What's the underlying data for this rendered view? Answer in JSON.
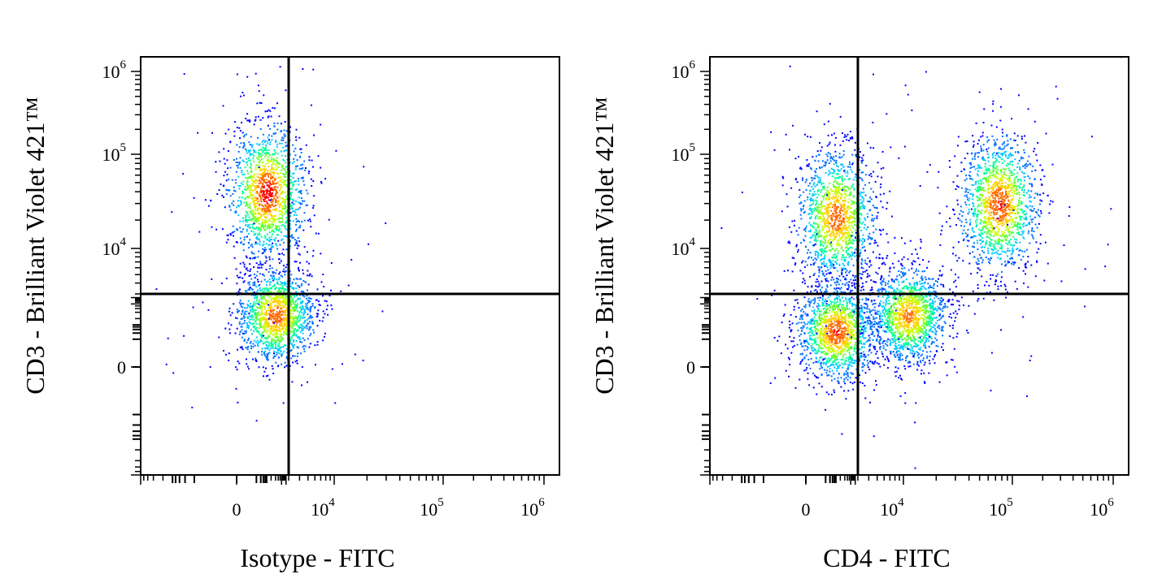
{
  "colors": {
    "density": [
      "#0000ff",
      "#0070ff",
      "#00c8ff",
      "#00ff9a",
      "#60ff30",
      "#c8ff00",
      "#ffd000",
      "#ff6a00",
      "#ff0000"
    ],
    "frame": "#000000",
    "gate": "#000000"
  },
  "chart_data": [
    {
      "type": "scatter",
      "subtype": "flow-cytometry-density-plot",
      "xlabel": "Isotype - FITC",
      "ylabel": "CD3 - Brilliant Violet 421™",
      "x_scale": "biexponential",
      "y_scale": "biexponential",
      "xlim": [
        -1000,
        1000000
      ],
      "ylim": [
        -1000,
        1000000
      ],
      "x_ticks": [
        {
          "value": 0,
          "base": "0",
          "exp": ""
        },
        {
          "value": 10000,
          "base": "10",
          "exp": "4"
        },
        {
          "value": 100000,
          "base": "10",
          "exp": "5"
        },
        {
          "value": 1000000,
          "base": "10",
          "exp": "6"
        }
      ],
      "y_ticks": [
        {
          "value": 0,
          "base": "0",
          "exp": ""
        },
        {
          "value": 10000,
          "base": "10",
          "exp": "4"
        },
        {
          "value": 100000,
          "base": "10",
          "exp": "5"
        },
        {
          "value": 1000000,
          "base": "10",
          "exp": "6"
        }
      ],
      "gate": {
        "x": 3000,
        "y": 3000
      },
      "populations": [
        {
          "x": 100,
          "y": 40000,
          "peak_density": 1.0
        },
        {
          "x": 400,
          "y": 300,
          "peak_density": 0.9
        }
      ]
    },
    {
      "type": "scatter",
      "subtype": "flow-cytometry-density-plot",
      "xlabel": "CD4 - FITC",
      "ylabel": "CD3 - Brilliant Violet 421™",
      "x_scale": "biexponential",
      "y_scale": "biexponential",
      "xlim": [
        -1000,
        1000000
      ],
      "ylim": [
        -1000,
        1000000
      ],
      "x_ticks": [
        {
          "value": 0,
          "base": "0",
          "exp": ""
        },
        {
          "value": 10000,
          "base": "10",
          "exp": "4"
        },
        {
          "value": 100000,
          "base": "10",
          "exp": "5"
        },
        {
          "value": 1000000,
          "base": "10",
          "exp": "6"
        }
      ],
      "y_ticks": [
        {
          "value": 0,
          "base": "0",
          "exp": ""
        },
        {
          "value": 10000,
          "base": "10",
          "exp": "4"
        },
        {
          "value": 100000,
          "base": "10",
          "exp": "5"
        },
        {
          "value": 1000000,
          "base": "10",
          "exp": "6"
        }
      ],
      "gate": {
        "x": 3000,
        "y": 3000
      },
      "populations": [
        {
          "x": 100,
          "y": 22000,
          "peak_density": 0.9
        },
        {
          "x": 75000,
          "y": 30000,
          "peak_density": 0.95
        },
        {
          "x": 100,
          "y": 50,
          "peak_density": 0.95
        },
        {
          "x": 11000,
          "y": 300,
          "peak_density": 0.85
        }
      ]
    }
  ]
}
